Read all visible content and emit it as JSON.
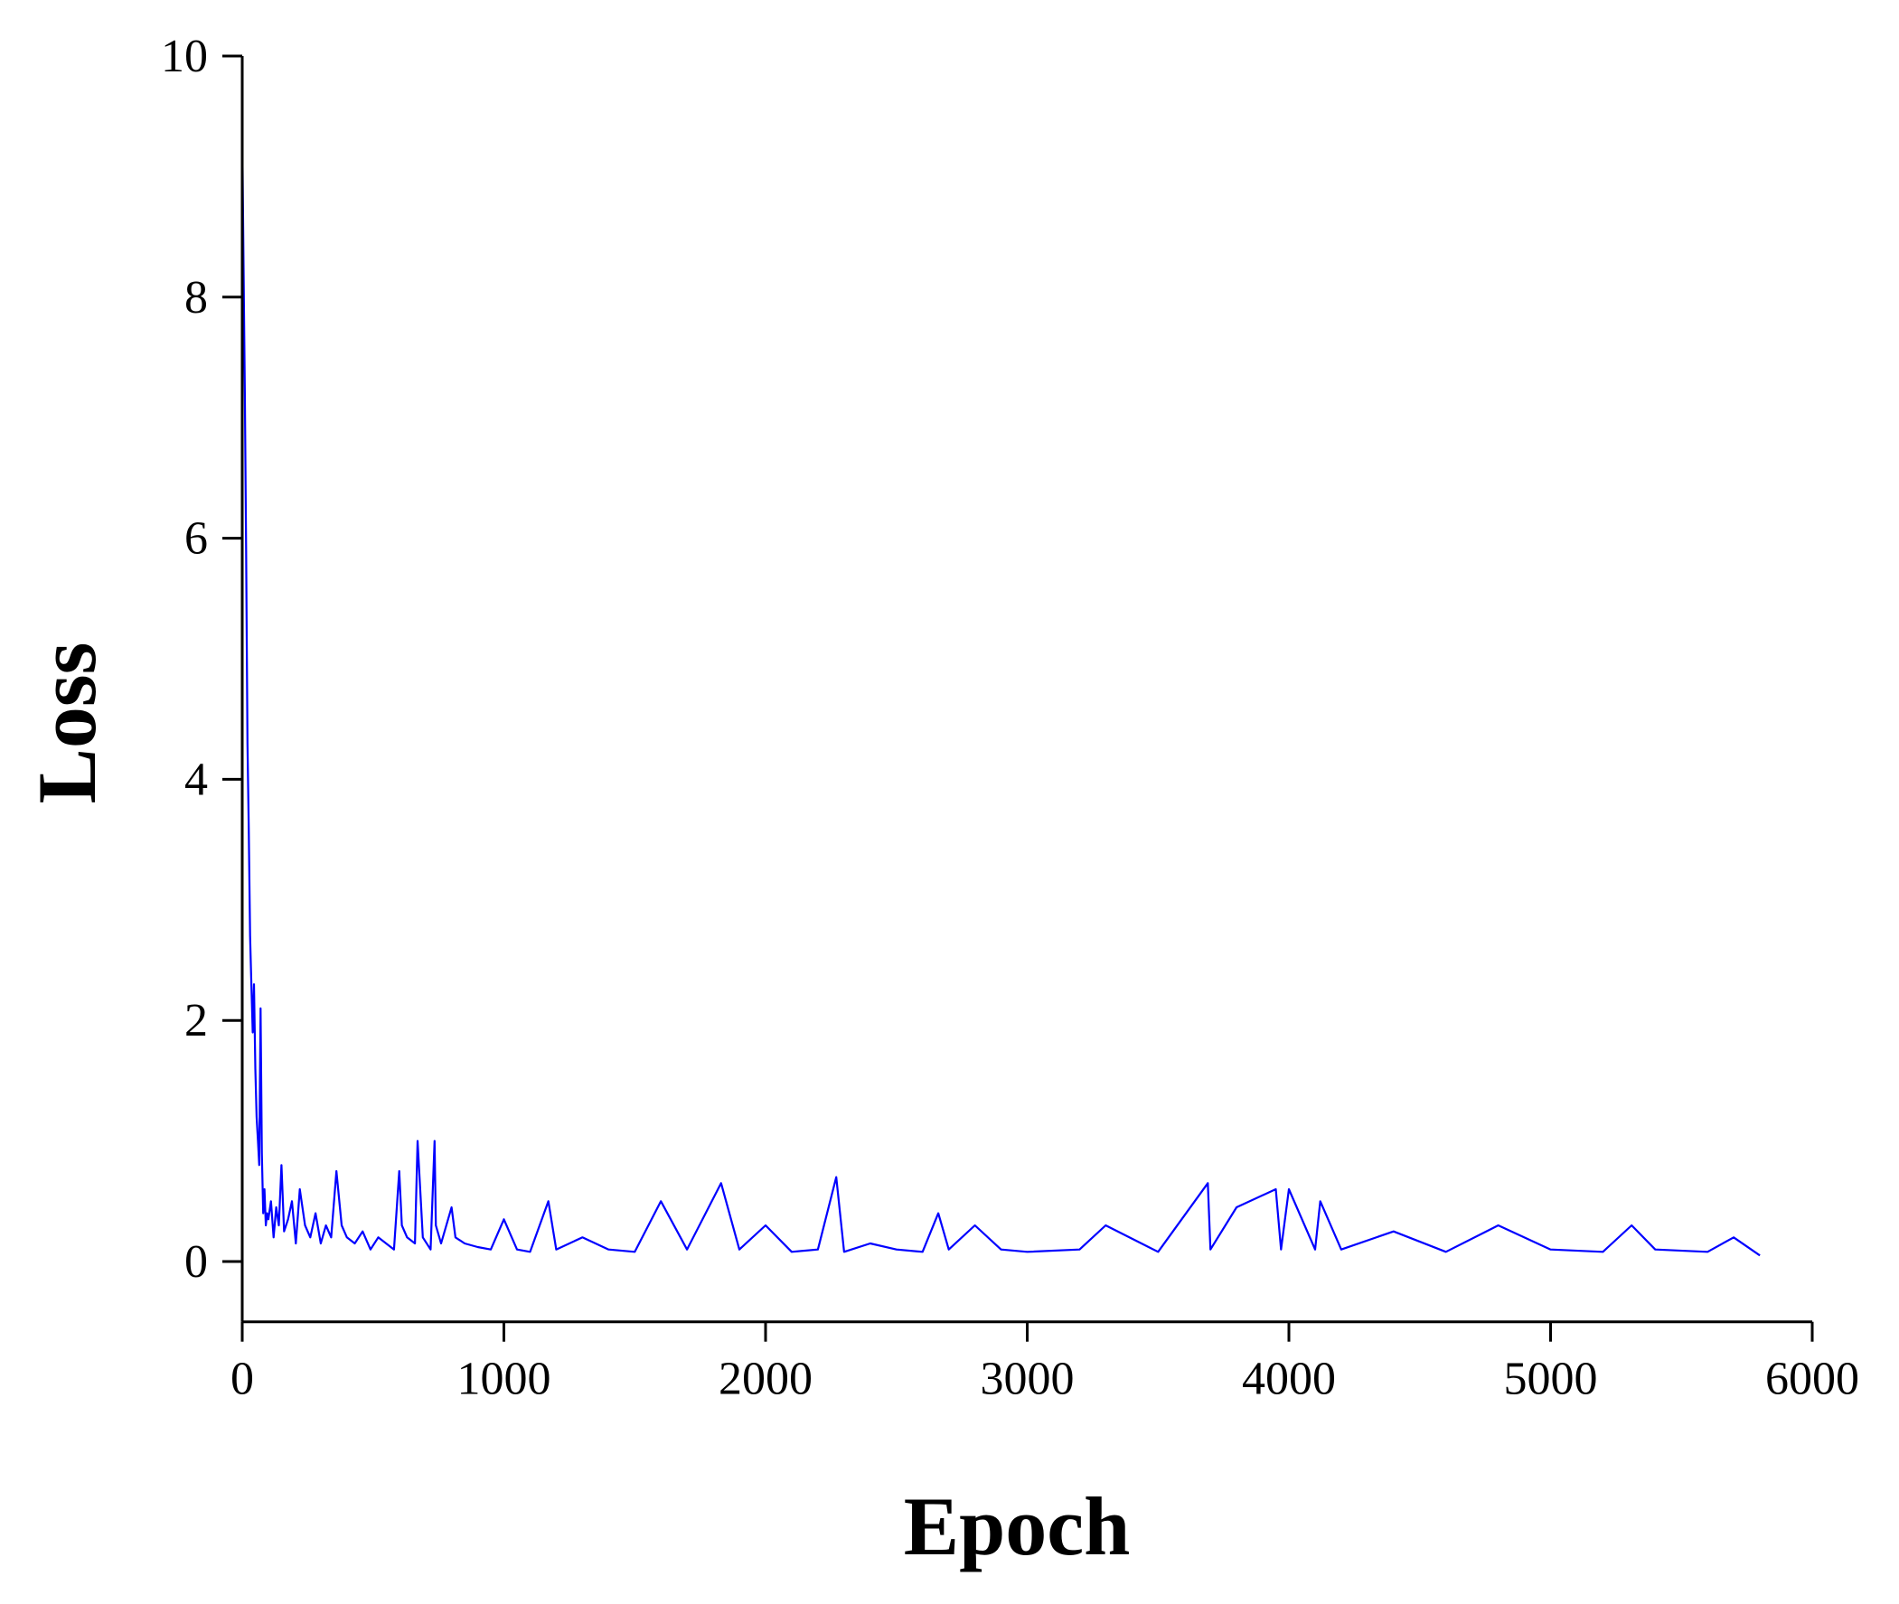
{
  "chart_data": {
    "type": "line",
    "title": "",
    "xlabel": "Epoch",
    "ylabel": "Loss",
    "xlim": [
      0,
      6000
    ],
    "ylim": [
      -0.5,
      10
    ],
    "x_ticks": [
      0,
      1000,
      2000,
      3000,
      4000,
      5000,
      6000
    ],
    "x_tick_labels": [
      "0",
      "1000",
      "2000",
      "3000",
      "4000",
      "5000",
      "6000"
    ],
    "y_ticks": [
      0,
      2,
      4,
      6,
      8,
      10
    ],
    "y_tick_labels": [
      "0",
      "2",
      "4",
      "6",
      "8",
      "10"
    ],
    "grid": false,
    "legend": "none",
    "line_color": "#0000ff",
    "series": [
      {
        "x": [
          0,
          5,
          10,
          15,
          20,
          25,
          30,
          35,
          40,
          45,
          50,
          55,
          60,
          65,
          70,
          75,
          80,
          85,
          90,
          95,
          100,
          110,
          120,
          130,
          140,
          150,
          160,
          175,
          190,
          205,
          220,
          240,
          260,
          280,
          300,
          320,
          340,
          360,
          380,
          400,
          430,
          460,
          490,
          520,
          550,
          580,
          600,
          610,
          630,
          660,
          670,
          690,
          720,
          735,
          740,
          760,
          800,
          815,
          850,
          900,
          950,
          1000,
          1050,
          1100,
          1170,
          1200,
          1300,
          1400,
          1500,
          1600,
          1700,
          1830,
          1900,
          2000,
          2100,
          2200,
          2270,
          2300,
          2400,
          2500,
          2600,
          2660,
          2700,
          2800,
          2900,
          3000,
          3200,
          3300,
          3500,
          3690,
          3700,
          3800,
          3950,
          3970,
          4000,
          4100,
          4120,
          4200,
          4400,
          4600,
          4800,
          5000,
          5200,
          5310,
          5400,
          5600,
          5700,
          5800
        ],
        "y": [
          9.4,
          8.3,
          7.2,
          5.9,
          4.3,
          3.6,
          2.7,
          2.3,
          1.9,
          2.3,
          1.6,
          1.2,
          1.0,
          0.8,
          2.1,
          0.9,
          0.4,
          0.6,
          0.3,
          0.4,
          0.35,
          0.5,
          0.2,
          0.45,
          0.3,
          0.8,
          0.25,
          0.35,
          0.5,
          0.15,
          0.6,
          0.3,
          0.2,
          0.4,
          0.15,
          0.3,
          0.2,
          0.75,
          0.3,
          0.2,
          0.15,
          0.25,
          0.1,
          0.2,
          0.15,
          0.1,
          0.75,
          0.3,
          0.2,
          0.15,
          1.0,
          0.2,
          0.1,
          1.0,
          0.3,
          0.15,
          0.45,
          0.2,
          0.15,
          0.12,
          0.1,
          0.35,
          0.1,
          0.08,
          0.5,
          0.1,
          0.2,
          0.1,
          0.08,
          0.5,
          0.1,
          0.65,
          0.1,
          0.3,
          0.08,
          0.1,
          0.7,
          0.08,
          0.15,
          0.1,
          0.08,
          0.4,
          0.1,
          0.3,
          0.1,
          0.08,
          0.1,
          0.3,
          0.08,
          0.65,
          0.1,
          0.45,
          0.6,
          0.1,
          0.6,
          0.1,
          0.5,
          0.1,
          0.25,
          0.08,
          0.3,
          0.1,
          0.08,
          0.3,
          0.1,
          0.08,
          0.2,
          0.05
        ]
      }
    ]
  }
}
